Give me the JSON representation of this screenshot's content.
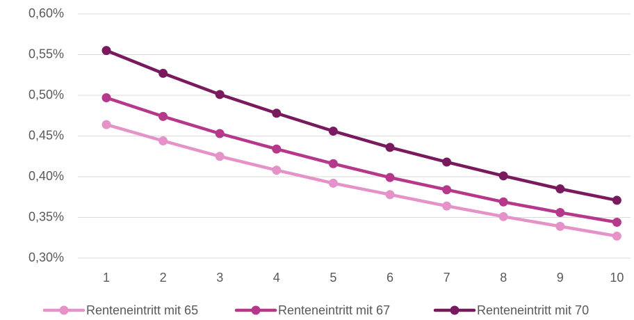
{
  "chart_data": {
    "type": "line",
    "categories": [
      "1",
      "2",
      "3",
      "4",
      "5",
      "6",
      "7",
      "8",
      "9",
      "10"
    ],
    "series": [
      {
        "name": "Renteneintritt mit 65",
        "values": [
          0.464,
          0.444,
          0.425,
          0.408,
          0.392,
          0.378,
          0.364,
          0.351,
          0.339,
          0.327
        ],
        "color": "#E592C9"
      },
      {
        "name": "Renteneintritt mit 67",
        "values": [
          0.497,
          0.474,
          0.453,
          0.434,
          0.416,
          0.399,
          0.384,
          0.369,
          0.356,
          0.344
        ],
        "color": "#B5388A"
      },
      {
        "name": "Renteneintritt mit 70",
        "values": [
          0.555,
          0.527,
          0.501,
          0.478,
          0.456,
          0.436,
          0.418,
          0.401,
          0.385,
          0.371
        ],
        "color": "#7A1A5E"
      }
    ],
    "ylim": [
      0.3,
      0.6
    ],
    "yticks": [
      {
        "value": 0.3,
        "label": "0,30%"
      },
      {
        "value": 0.35,
        "label": "0,35%"
      },
      {
        "value": 0.4,
        "label": "0,40%"
      },
      {
        "value": 0.45,
        "label": "0,45%"
      },
      {
        "value": 0.5,
        "label": "0,50%"
      },
      {
        "value": 0.55,
        "label": "0,55%"
      },
      {
        "value": 0.6,
        "label": "0,60%"
      }
    ],
    "title": "",
    "xlabel": "",
    "ylabel": "",
    "grid": "horizontal",
    "legend_position": "bottom",
    "colors": {
      "gridline": "#D9D9D9",
      "text": "#595959"
    }
  }
}
